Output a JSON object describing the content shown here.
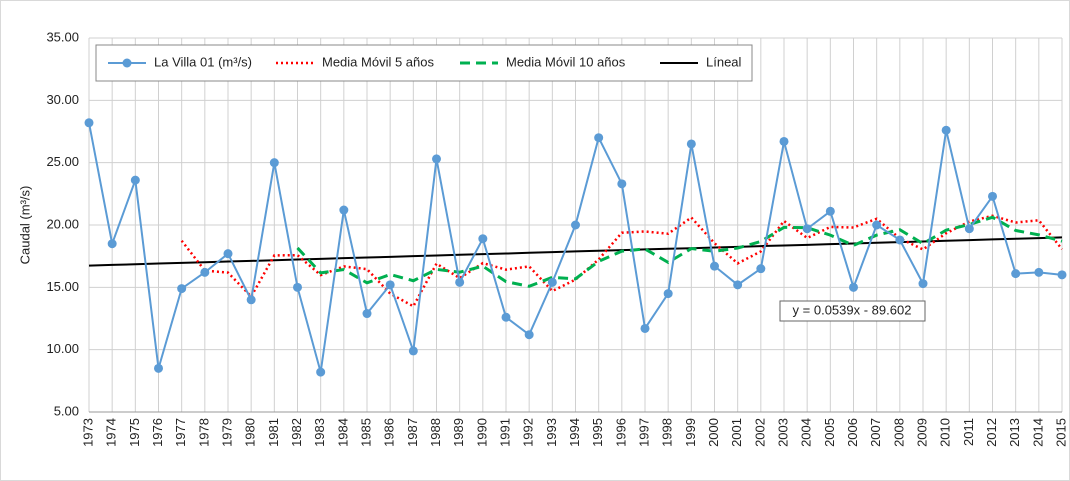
{
  "chart_data": {
    "type": "line",
    "ylabel": "Caudal (m³/s)",
    "annotation": "y = 0.0539x - 89.602",
    "categories": [
      "1973",
      "1974",
      "1975",
      "1976",
      "1977",
      "1978",
      "1979",
      "1980",
      "1981",
      "1982",
      "1983",
      "1984",
      "1985",
      "1986",
      "1987",
      "1988",
      "1989",
      "1990",
      "1991",
      "1992",
      "1993",
      "1994",
      "1995",
      "1996",
      "1997",
      "1998",
      "1999",
      "2000",
      "2001",
      "2002",
      "2003",
      "2004",
      "2005",
      "2006",
      "2007",
      "2008",
      "2009",
      "2010",
      "2011",
      "2012",
      "2013",
      "2014",
      "2015"
    ],
    "series": [
      {
        "name": "La Villa 01 (m³/s)",
        "color": "#5b9bd5",
        "style": "solid",
        "markers": true,
        "values": [
          28.2,
          18.5,
          23.6,
          8.5,
          14.9,
          16.2,
          17.7,
          14.0,
          25.0,
          15.0,
          8.2,
          21.2,
          12.9,
          15.2,
          9.9,
          25.3,
          15.4,
          18.9,
          12.6,
          11.2,
          15.4,
          20.0,
          27.0,
          23.3,
          11.7,
          14.5,
          26.5,
          16.7,
          15.2,
          16.5,
          26.7,
          19.7,
          21.1,
          15.0,
          20.0,
          18.8,
          15.3,
          27.6,
          19.7,
          22.3,
          16.1,
          16.2,
          16.0
        ]
      },
      {
        "name": "Media Móvil 5 años",
        "color": "#ff0000",
        "style": "dotted",
        "markers": false,
        "values": [
          null,
          null,
          null,
          null,
          18.74,
          16.34,
          16.18,
          14.26,
          17.56,
          17.58,
          15.98,
          16.68,
          16.46,
          14.5,
          13.48,
          16.9,
          15.74,
          16.94,
          16.42,
          16.68,
          14.7,
          15.62,
          17.24,
          19.38,
          19.48,
          19.3,
          20.6,
          18.54,
          16.92,
          17.88,
          20.32,
          18.96,
          19.84,
          19.8,
          20.5,
          18.92,
          18.04,
          19.34,
          20.28,
          20.74,
          20.2,
          20.38,
          18.06
        ]
      },
      {
        "name": "Media Móvil 10 años",
        "color": "#00b050",
        "style": "dashed",
        "markers": false,
        "values": [
          null,
          null,
          null,
          null,
          null,
          null,
          null,
          null,
          null,
          18.16,
          16.16,
          16.43,
          15.36,
          16.03,
          15.53,
          16.44,
          16.21,
          16.7,
          15.46,
          15.08,
          15.8,
          15.68,
          17.09,
          17.9,
          18.08,
          17.0,
          18.11,
          17.89,
          18.15,
          18.68,
          19.81,
          19.78,
          19.19,
          18.36,
          19.19,
          19.62,
          18.5,
          19.59,
          20.04,
          20.62,
          19.56,
          19.21,
          18.7
        ]
      },
      {
        "name": "Líneal",
        "color": "#000000",
        "style": "solid",
        "markers": false,
        "values": [
          16.74,
          16.8,
          16.85,
          16.91,
          16.96,
          17.01,
          17.07,
          17.12,
          17.17,
          17.23,
          17.28,
          17.34,
          17.39,
          17.44,
          17.5,
          17.55,
          17.61,
          17.66,
          17.71,
          17.77,
          17.82,
          17.88,
          17.93,
          17.98,
          18.04,
          18.09,
          18.14,
          18.2,
          18.25,
          18.31,
          18.36,
          18.41,
          18.47,
          18.52,
          18.58,
          18.63,
          18.68,
          18.74,
          18.79,
          18.85,
          18.9,
          18.95,
          19.01
        ]
      }
    ],
    "ylim": [
      5,
      35
    ],
    "yticks": [
      {
        "value": 5,
        "label": "5.00"
      },
      {
        "value": 10,
        "label": "10.00"
      },
      {
        "value": 15,
        "label": "15.00"
      },
      {
        "value": 20,
        "label": "20.00"
      },
      {
        "value": 25,
        "label": "25.00"
      },
      {
        "value": 30,
        "label": "30.00"
      },
      {
        "value": 35,
        "label": "35.00"
      }
    ],
    "grid": true,
    "legend": "top"
  }
}
